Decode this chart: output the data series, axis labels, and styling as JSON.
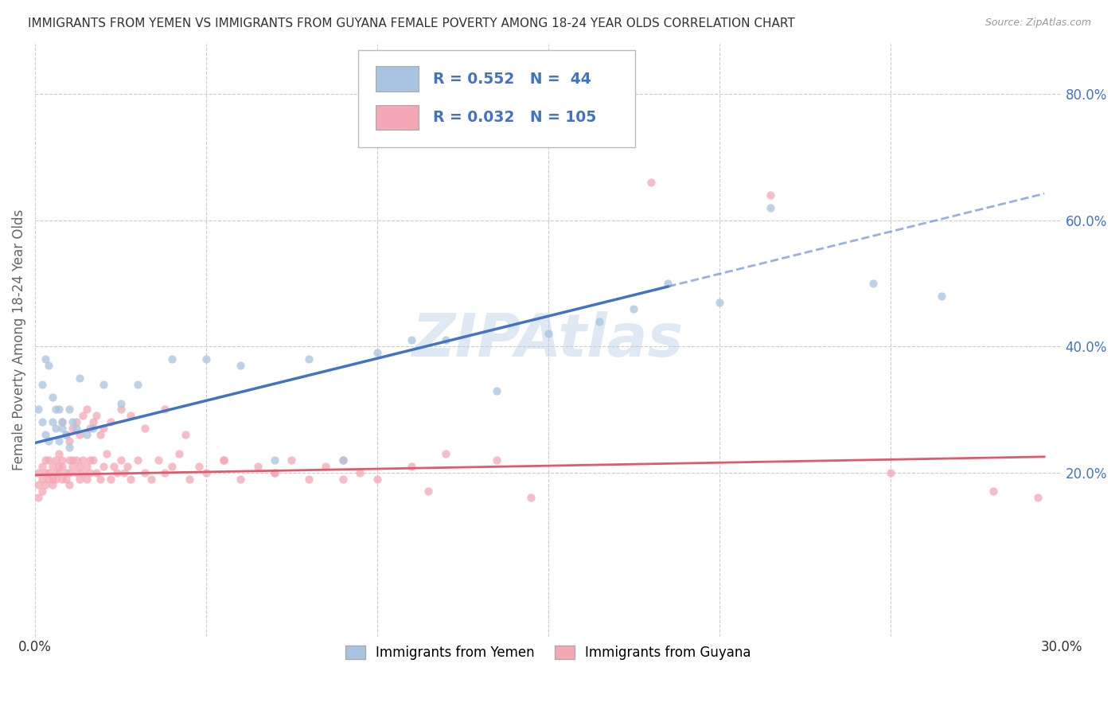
{
  "title": "IMMIGRANTS FROM YEMEN VS IMMIGRANTS FROM GUYANA FEMALE POVERTY AMONG 18-24 YEAR OLDS CORRELATION CHART",
  "source": "Source: ZipAtlas.com",
  "ylabel": "Female Poverty Among 18-24 Year Olds",
  "legend_label1": "Immigrants from Yemen",
  "legend_label2": "Immigrants from Guyana",
  "R1": "0.552",
  "N1": "44",
  "R2": "0.032",
  "N2": "105",
  "xmin": 0.0,
  "xmax": 0.3,
  "ymin": -0.06,
  "ymax": 0.88,
  "right_yticks": [
    0.2,
    0.4,
    0.6,
    0.8
  ],
  "right_yticklabels": [
    "20.0%",
    "40.0%",
    "60.0%",
    "80.0%"
  ],
  "xticks": [
    0.0,
    0.05,
    0.1,
    0.15,
    0.2,
    0.25,
    0.3
  ],
  "xticklabels": [
    "0.0%",
    "",
    "",
    "",
    "",
    "",
    "30.0%"
  ],
  "color_yemen": "#a8c4e0",
  "color_guyana": "#f4a7b5",
  "line_color_yemen": "#4472c4",
  "line_color_guyana": "#e05a6e",
  "scatter_alpha": 0.75,
  "scatter_size": 55,
  "watermark": "ZIPAtlas",
  "title_color": "#333333",
  "axis_label_color": "#666666",
  "right_axis_color": "#4472c4",
  "grid_color": "#cccccc",
  "yemen_line_x0": 0.0,
  "yemen_line_y0": 0.247,
  "yemen_line_x1": 0.185,
  "yemen_line_y1": 0.495,
  "guyana_line_x0": 0.0,
  "guyana_line_y0": 0.196,
  "guyana_line_x1": 0.295,
  "guyana_line_y1": 0.225,
  "yemen_x": [
    0.001,
    0.002,
    0.002,
    0.003,
    0.003,
    0.004,
    0.004,
    0.005,
    0.005,
    0.006,
    0.006,
    0.007,
    0.007,
    0.008,
    0.008,
    0.009,
    0.01,
    0.01,
    0.011,
    0.012,
    0.013,
    0.015,
    0.017,
    0.02,
    0.025,
    0.03,
    0.04,
    0.05,
    0.06,
    0.07,
    0.08,
    0.09,
    0.1,
    0.11,
    0.12,
    0.135,
    0.15,
    0.165,
    0.175,
    0.185,
    0.2,
    0.215,
    0.245,
    0.265
  ],
  "yemen_y": [
    0.3,
    0.28,
    0.34,
    0.26,
    0.38,
    0.37,
    0.25,
    0.32,
    0.28,
    0.3,
    0.27,
    0.25,
    0.3,
    0.28,
    0.27,
    0.26,
    0.3,
    0.24,
    0.28,
    0.27,
    0.35,
    0.26,
    0.27,
    0.34,
    0.31,
    0.34,
    0.38,
    0.38,
    0.37,
    0.22,
    0.38,
    0.22,
    0.39,
    0.41,
    0.41,
    0.33,
    0.42,
    0.44,
    0.46,
    0.5,
    0.47,
    0.62,
    0.5,
    0.48
  ],
  "guyana_x": [
    0.001,
    0.001,
    0.001,
    0.002,
    0.002,
    0.002,
    0.003,
    0.003,
    0.003,
    0.004,
    0.004,
    0.004,
    0.005,
    0.005,
    0.005,
    0.006,
    0.006,
    0.006,
    0.007,
    0.007,
    0.007,
    0.008,
    0.008,
    0.008,
    0.009,
    0.009,
    0.01,
    0.01,
    0.01,
    0.011,
    0.011,
    0.012,
    0.012,
    0.013,
    0.013,
    0.014,
    0.014,
    0.015,
    0.015,
    0.016,
    0.016,
    0.017,
    0.018,
    0.019,
    0.02,
    0.021,
    0.022,
    0.023,
    0.024,
    0.025,
    0.026,
    0.027,
    0.028,
    0.03,
    0.032,
    0.034,
    0.036,
    0.038,
    0.04,
    0.042,
    0.045,
    0.048,
    0.05,
    0.055,
    0.06,
    0.065,
    0.07,
    0.075,
    0.08,
    0.085,
    0.09,
    0.095,
    0.1,
    0.11,
    0.12,
    0.135,
    0.008,
    0.009,
    0.01,
    0.011,
    0.012,
    0.013,
    0.014,
    0.015,
    0.016,
    0.017,
    0.018,
    0.019,
    0.02,
    0.022,
    0.025,
    0.028,
    0.032,
    0.038,
    0.044,
    0.055,
    0.07,
    0.09,
    0.115,
    0.145,
    0.18,
    0.215,
    0.25,
    0.28,
    0.293
  ],
  "guyana_y": [
    0.18,
    0.2,
    0.16,
    0.19,
    0.17,
    0.21,
    0.2,
    0.18,
    0.22,
    0.19,
    0.2,
    0.22,
    0.18,
    0.21,
    0.19,
    0.2,
    0.22,
    0.19,
    0.21,
    0.2,
    0.23,
    0.22,
    0.19,
    0.21,
    0.2,
    0.19,
    0.22,
    0.2,
    0.18,
    0.22,
    0.21,
    0.2,
    0.22,
    0.19,
    0.21,
    0.2,
    0.22,
    0.21,
    0.19,
    0.22,
    0.2,
    0.22,
    0.2,
    0.19,
    0.21,
    0.23,
    0.19,
    0.21,
    0.2,
    0.22,
    0.2,
    0.21,
    0.19,
    0.22,
    0.2,
    0.19,
    0.22,
    0.2,
    0.21,
    0.23,
    0.19,
    0.21,
    0.2,
    0.22,
    0.19,
    0.21,
    0.2,
    0.22,
    0.19,
    0.21,
    0.22,
    0.2,
    0.19,
    0.21,
    0.23,
    0.22,
    0.28,
    0.26,
    0.25,
    0.27,
    0.28,
    0.26,
    0.29,
    0.3,
    0.27,
    0.28,
    0.29,
    0.26,
    0.27,
    0.28,
    0.3,
    0.29,
    0.27,
    0.3,
    0.26,
    0.22,
    0.2,
    0.19,
    0.17,
    0.16,
    0.66,
    0.64,
    0.2,
    0.17,
    0.16
  ]
}
